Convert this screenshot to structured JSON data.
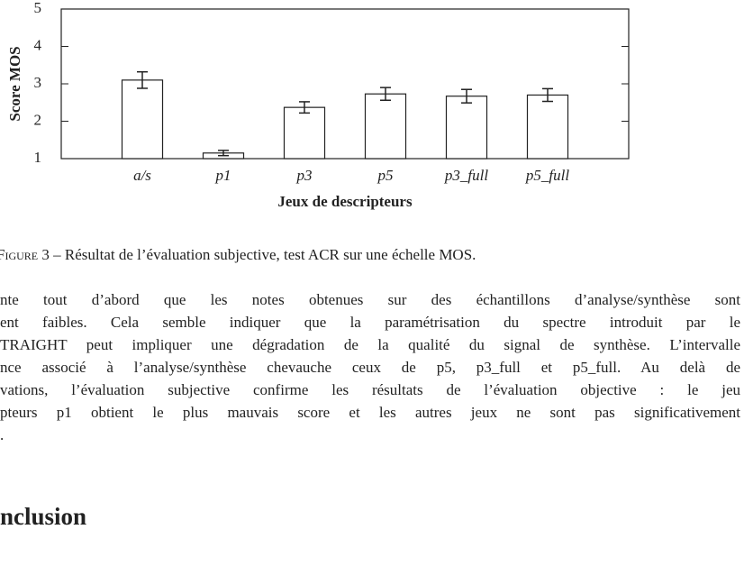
{
  "chart_data": {
    "type": "bar",
    "y_label": "Score MOS",
    "x_label": "Jeux de descripteurs",
    "categories": [
      "a/s",
      "p1",
      "p3",
      "p5",
      "p3_full",
      "p5_full"
    ],
    "values": [
      3.1,
      1.15,
      2.37,
      2.73,
      2.67,
      2.7
    ],
    "errors": [
      0.22,
      0.07,
      0.15,
      0.17,
      0.18,
      0.17
    ],
    "color": "#ffffff",
    "ylim": [
      1,
      5
    ],
    "yticks": [
      1,
      2,
      3,
      4,
      5
    ],
    "grid": false
  },
  "caption": {
    "label": "Figure",
    "text": "3 – Résultat de l’évaluation subjective, test ACR sur une échelle MOS."
  },
  "paragraph": [
    "nte tout d’abord que les notes obtenues sur des échantillons d’analyse/synthèse sont",
    "ent faibles. Cela semble indiquer que la paramétrisation du spectre introduit par le",
    "TRAIGHT peut impliquer une dégradation de la qualité du signal de synthèse. L’intervalle",
    "nce associé à l’analyse/synthèse chevauche ceux de p5, p3_full et p5_full. Au delà de",
    "vations, l’évaluation subjective confirme les résultats de l’évaluation objective : le jeu",
    "pteurs p1 obtient le plus mauvais score et les autres jeux ne sont pas significativement",
    "."
  ],
  "heading": "nclusion"
}
